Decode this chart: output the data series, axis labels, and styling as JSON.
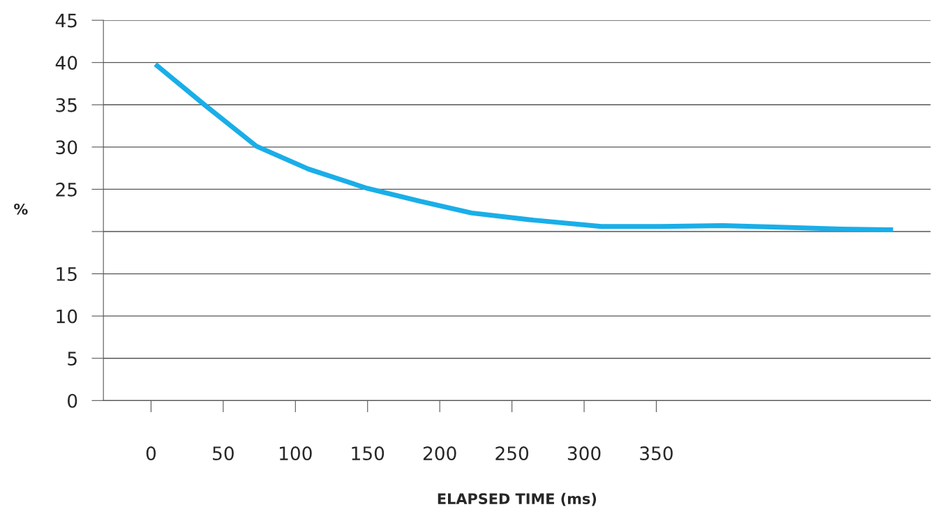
{
  "chart_data": {
    "type": "line",
    "xlabel": "ELAPSED TIME (ms)",
    "ylabel": "%",
    "xlim": [
      -33,
      540
    ],
    "xticks": [
      0,
      50,
      100,
      150,
      200,
      250,
      300,
      350
    ],
    "ylim": [
      0,
      45
    ],
    "yticks": [
      0,
      5,
      10,
      15,
      {
        "value": 20,
        "label": null
      },
      25,
      30,
      35,
      40,
      45
    ],
    "grid": "y",
    "legend": false,
    "marker": "none",
    "line_style": "solid",
    "series": [
      {
        "color": "#1aaee8",
        "x": [
          3,
          37,
          73,
          109,
          150,
          186,
          222,
          262,
          312,
          353,
          396,
          439,
          478,
          514
        ],
        "values": [
          39.8,
          35,
          30.1,
          27.4,
          25.1,
          23.6,
          22.2,
          21.4,
          20.6,
          20.6,
          20.7,
          20.5,
          20.3,
          20.2
        ]
      }
    ]
  }
}
